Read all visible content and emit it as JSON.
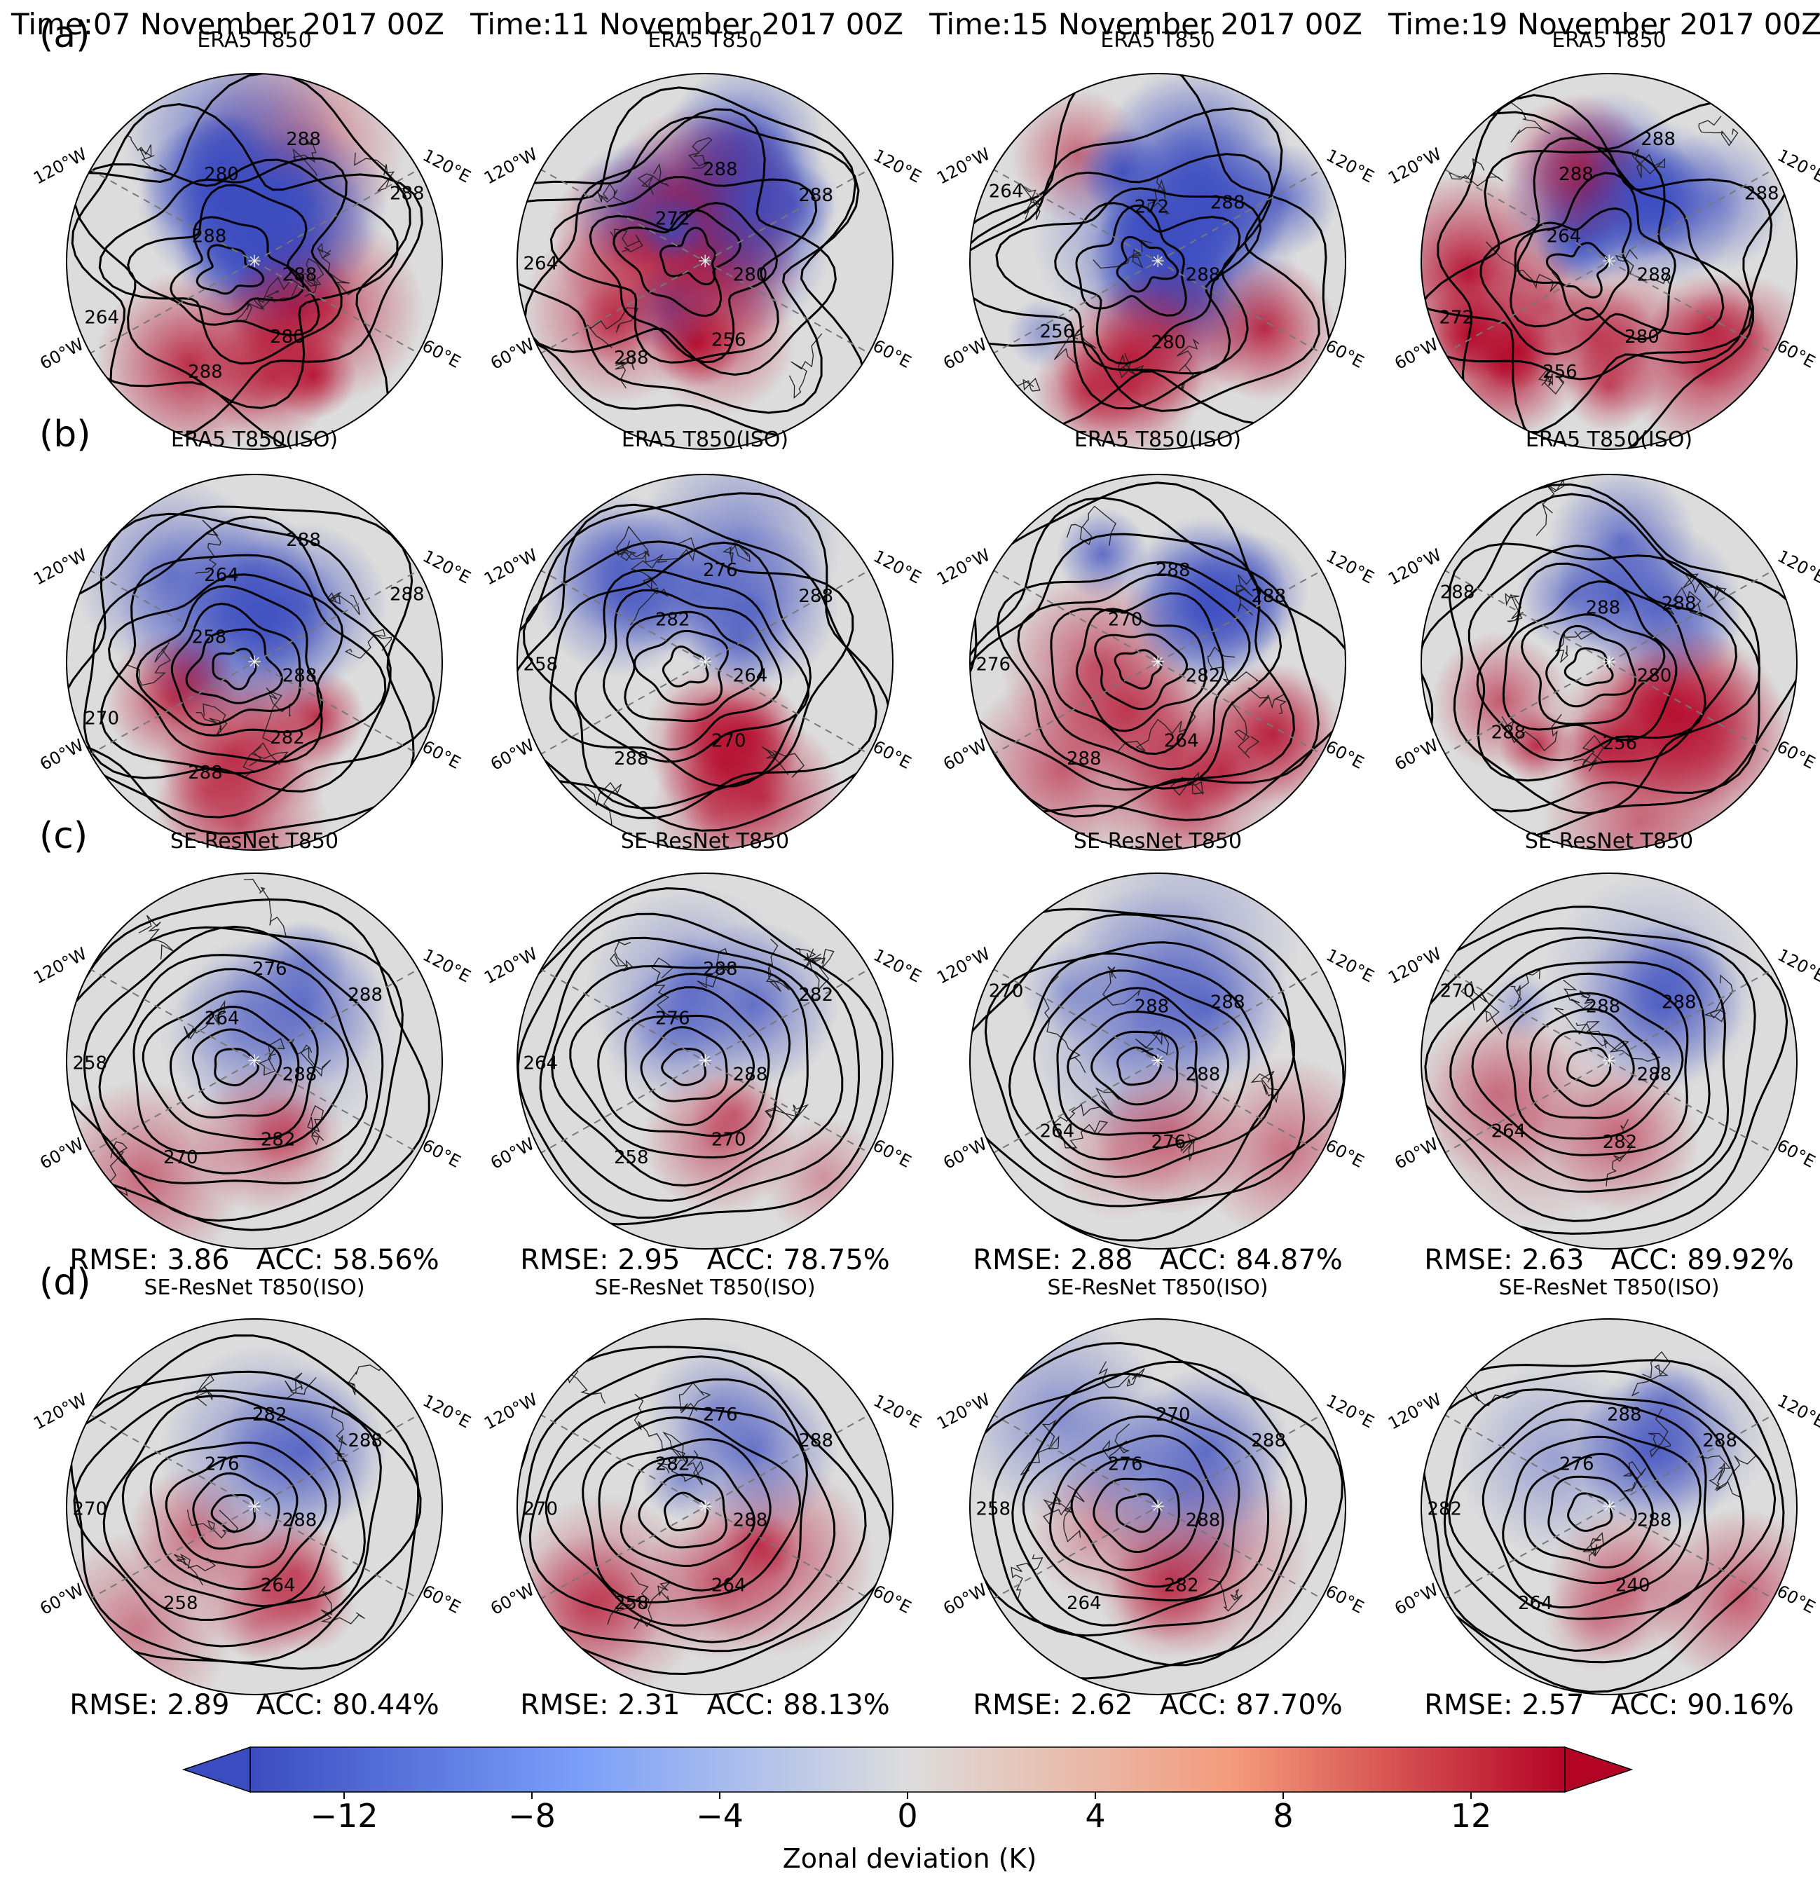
{
  "columns": [
    {
      "time": "Time:07 November 2017 00Z"
    },
    {
      "time": "Time:11 November 2017 00Z"
    },
    {
      "time": "Time:15 November 2017 00Z"
    },
    {
      "time": "Time:19 November 2017 00Z"
    }
  ],
  "rows": [
    {
      "letter": "(a)",
      "title": "ERA5 T850"
    },
    {
      "letter": "(b)",
      "title": "ERA5 T850(ISO)"
    },
    {
      "letter": "(c)",
      "title": "SE-ResNet T850"
    },
    {
      "letter": "(d)",
      "title": "SE-ResNet T850(ISO)"
    }
  ],
  "lon_labels": {
    "tl": "120°W",
    "tr": "120°E",
    "bl": "60°W",
    "br": "60°E"
  },
  "contour_labels": {
    "a": [
      [
        "288",
        "280",
        "288",
        "264",
        "288",
        "280",
        "288",
        "288"
      ],
      [
        "280",
        "256",
        "288",
        "264",
        "272",
        "288",
        "288"
      ],
      [
        "288",
        "280",
        "256",
        "264",
        "272",
        "288"
      ],
      [
        "288",
        "280",
        "256",
        "272",
        "264",
        "288",
        "288",
        "288"
      ]
    ],
    "b": [
      [
        "288",
        "282",
        "288",
        "270",
        "258",
        "264",
        "288",
        "288"
      ],
      [
        "264",
        "270",
        "288",
        "258",
        "282",
        "276",
        "288"
      ],
      [
        "282",
        "264",
        "288",
        "276",
        "270",
        "288",
        "288"
      ],
      [
        "280",
        "256",
        "288",
        "288",
        "288",
        "288"
      ]
    ],
    "c": [
      [
        "288",
        "282",
        "270",
        "258",
        "264",
        "276",
        "288"
      ],
      [
        "288",
        "270",
        "258",
        "264",
        "276",
        "288",
        "282"
      ],
      [
        "288",
        "276",
        "264",
        "270",
        "288",
        "288"
      ],
      [
        "288",
        "282",
        "264",
        "270",
        "288",
        "288"
      ]
    ],
    "d": [
      [
        "288",
        "264",
        "258",
        "270",
        "276",
        "282",
        "288"
      ],
      [
        "288",
        "264",
        "258",
        "270",
        "282",
        "276",
        "288"
      ],
      [
        "288",
        "282",
        "264",
        "258",
        "276",
        "270",
        "288"
      ],
      [
        "288",
        "240",
        "264",
        "282",
        "276",
        "288",
        "288"
      ]
    ]
  },
  "metrics": {
    "c": [
      {
        "rmse": "RMSE: 3.86",
        "acc": "ACC: 58.56%"
      },
      {
        "rmse": "RMSE: 2.95",
        "acc": "ACC: 78.75%"
      },
      {
        "rmse": "RMSE: 2.88",
        "acc": "ACC: 84.87%"
      },
      {
        "rmse": "RMSE: 2.63",
        "acc": "ACC: 89.92%"
      }
    ],
    "d": [
      {
        "rmse": "RMSE: 2.89",
        "acc": "ACC: 80.44%"
      },
      {
        "rmse": "RMSE: 2.31",
        "acc": "ACC: 88.13%"
      },
      {
        "rmse": "RMSE: 2.62",
        "acc": "ACC: 87.70%"
      },
      {
        "rmse": "RMSE: 2.57",
        "acc": "ACC: 90.16%"
      }
    ]
  },
  "colorbar": {
    "label": "Zonal deviation (K)",
    "ticks": [
      "−12",
      "−8",
      "−4",
      "0",
      "4",
      "8",
      "12"
    ],
    "tick_values": [
      -12,
      -8,
      -4,
      0,
      4,
      8,
      12
    ],
    "range": [
      -14,
      14
    ],
    "colors": {
      "cold": "#3b4cc0",
      "mid": "#dddddd",
      "warm": "#b40426"
    }
  }
}
